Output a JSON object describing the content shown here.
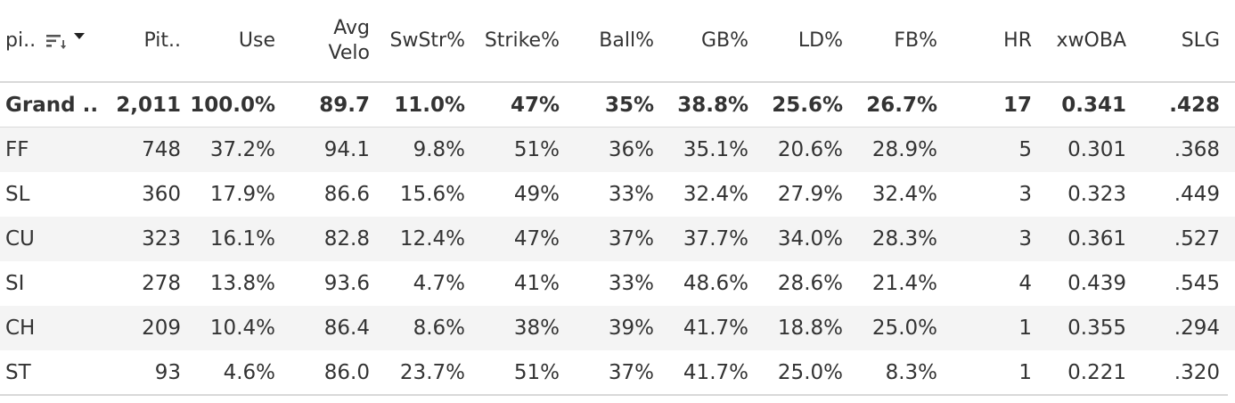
{
  "headers": {
    "pitch": "pi..",
    "pitches": "Pit..",
    "use": "Use",
    "avg_velo_1": "Avg",
    "avg_velo_2": "Velo",
    "swstr": "SwStr%",
    "strike": "Strike%",
    "ball": "Ball%",
    "gb": "GB%",
    "ld": "LD%",
    "fb": "FB%",
    "hr": "HR",
    "xwoba": "xwOBA",
    "slg": "SLG"
  },
  "icons": {
    "sort": "sort-descending-icon",
    "dropdown": "caret-down-icon"
  },
  "rows": [
    {
      "pitch": "Grand ..",
      "pitches": "2,011",
      "use": "100.0%",
      "velo": "89.7",
      "swstr": "11.0%",
      "strike": "47%",
      "ball": "35%",
      "gb": "38.8%",
      "ld": "25.6%",
      "fb": "26.7%",
      "hr": "17",
      "xwoba": "0.341",
      "slg": ".428"
    },
    {
      "pitch": "FF",
      "pitches": "748",
      "use": "37.2%",
      "velo": "94.1",
      "swstr": "9.8%",
      "strike": "51%",
      "ball": "36%",
      "gb": "35.1%",
      "ld": "20.6%",
      "fb": "28.9%",
      "hr": "5",
      "xwoba": "0.301",
      "slg": ".368"
    },
    {
      "pitch": "SL",
      "pitches": "360",
      "use": "17.9%",
      "velo": "86.6",
      "swstr": "15.6%",
      "strike": "49%",
      "ball": "33%",
      "gb": "32.4%",
      "ld": "27.9%",
      "fb": "32.4%",
      "hr": "3",
      "xwoba": "0.323",
      "slg": ".449"
    },
    {
      "pitch": "CU",
      "pitches": "323",
      "use": "16.1%",
      "velo": "82.8",
      "swstr": "12.4%",
      "strike": "47%",
      "ball": "37%",
      "gb": "37.7%",
      "ld": "34.0%",
      "fb": "28.3%",
      "hr": "3",
      "xwoba": "0.361",
      "slg": ".527"
    },
    {
      "pitch": "SI",
      "pitches": "278",
      "use": "13.8%",
      "velo": "93.6",
      "swstr": "4.7%",
      "strike": "41%",
      "ball": "33%",
      "gb": "48.6%",
      "ld": "28.6%",
      "fb": "21.4%",
      "hr": "4",
      "xwoba": "0.439",
      "slg": ".545"
    },
    {
      "pitch": "CH",
      "pitches": "209",
      "use": "10.4%",
      "velo": "86.4",
      "swstr": "8.6%",
      "strike": "38%",
      "ball": "39%",
      "gb": "41.7%",
      "ld": "18.8%",
      "fb": "25.0%",
      "hr": "1",
      "xwoba": "0.355",
      "slg": ".294"
    },
    {
      "pitch": "ST",
      "pitches": "93",
      "use": "4.6%",
      "velo": "86.0",
      "swstr": "23.7%",
      "strike": "51%",
      "ball": "37%",
      "gb": "41.7%",
      "ld": "25.0%",
      "fb": "8.3%",
      "hr": "1",
      "xwoba": "0.221",
      "slg": ".320"
    }
  ]
}
